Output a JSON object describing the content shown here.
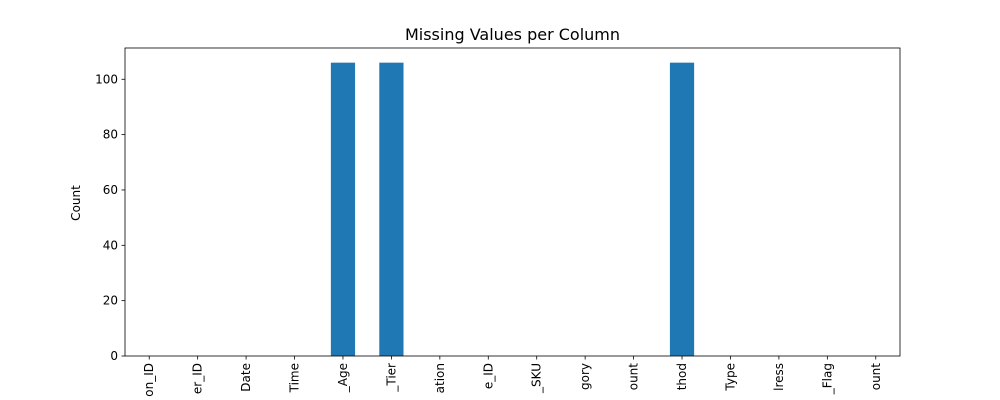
{
  "chart_data": {
    "type": "bar",
    "title": "Missing Values per Column",
    "xlabel": "",
    "ylabel": "Count",
    "categories": [
      "on_ID",
      "er_ID",
      "Date",
      "Time",
      "_Age",
      "_Tier",
      "ation",
      "e_ID",
      "_SKU",
      "gory",
      "ount",
      "thod",
      "Type",
      "lress",
      "_Flag",
      "ount"
    ],
    "values": [
      0,
      0,
      0,
      0,
      106,
      106,
      0,
      0,
      0,
      0,
      0,
      106,
      0,
      0,
      0,
      0
    ],
    "ylim": [
      0,
      111.3
    ],
    "yticks": [
      0,
      20,
      40,
      60,
      80,
      100
    ],
    "bar_color": "#1f77b4",
    "grid": false,
    "legend": "none"
  }
}
